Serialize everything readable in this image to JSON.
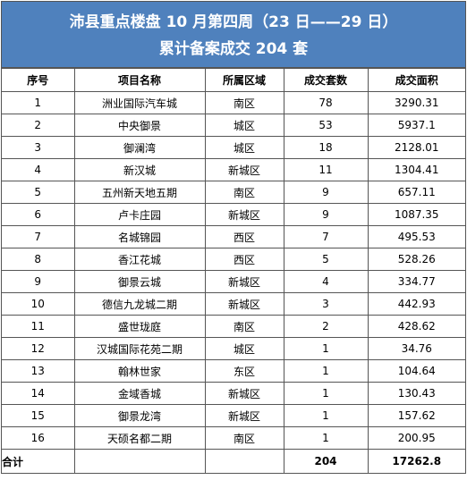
{
  "header": {
    "title": "沛县重点楼盘 10 月第四周（23 日——29 日）",
    "subtitle": "累计备案成交 204 套"
  },
  "table": {
    "columns": [
      "序号",
      "项目名称",
      "所属区域",
      "成交套数",
      "成交面积"
    ],
    "rows": [
      [
        1,
        "洲业国际汽车城",
        "南区",
        78,
        3290.31
      ],
      [
        2,
        "中央御景",
        "城区",
        53,
        5937.1
      ],
      [
        3,
        "御澜湾",
        "城区",
        18,
        2128.01
      ],
      [
        4,
        "新汉城",
        "新城区",
        11,
        1304.41
      ],
      [
        5,
        "五州新天地五期",
        "南区",
        9,
        657.11
      ],
      [
        6,
        "卢卡庄园",
        "新城区",
        9,
        1087.35
      ],
      [
        7,
        "名城锦园",
        "西区",
        7,
        495.53
      ],
      [
        8,
        "香江花城",
        "西区",
        5,
        528.26
      ],
      [
        9,
        "御景云城",
        "新城区",
        4,
        334.77
      ],
      [
        10,
        "德信九龙城二期",
        "新城区",
        3,
        442.93
      ],
      [
        11,
        "盛世珑庭",
        "南区",
        2,
        428.62
      ],
      [
        12,
        "汉城国际花苑二期",
        "城区",
        1,
        34.76
      ],
      [
        13,
        "翰林世家",
        "东区",
        1,
        104.64
      ],
      [
        14,
        "金域香城",
        "新城区",
        1,
        130.43
      ],
      [
        15,
        "御景龙湾",
        "新城区",
        1,
        157.62
      ],
      [
        16,
        "天硕名都二期",
        "南区",
        1,
        200.95
      ]
    ],
    "total": {
      "label": "合计",
      "units": 204,
      "area": 17262.8
    }
  }
}
